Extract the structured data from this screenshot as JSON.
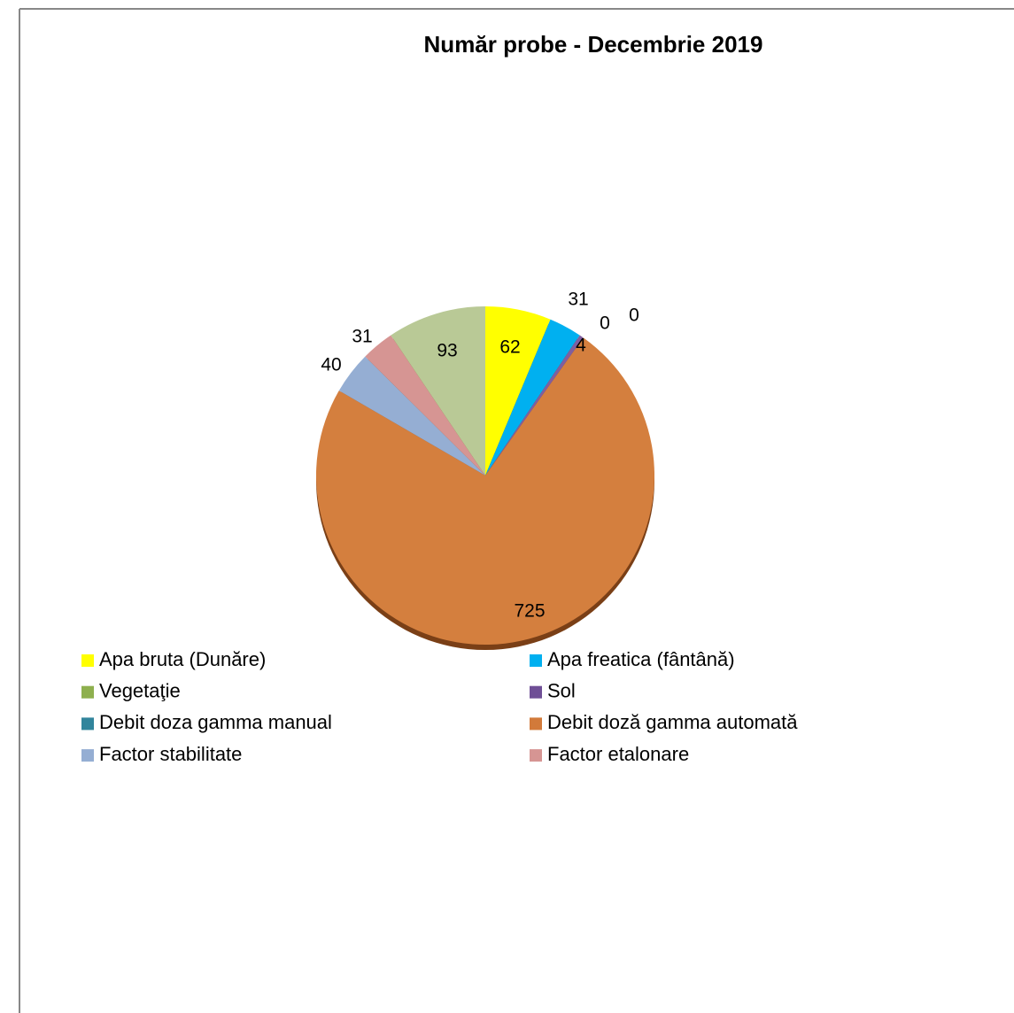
{
  "chart_data": {
    "type": "pie",
    "title": "Număr probe - Decembrie 2019",
    "categories": [
      "Apa bruta (Dunăre)",
      "Apa freatica (fântână)",
      null,
      "Debit  doza gamma manual",
      "Sol",
      "Debit doză gamma automată",
      "Factor stabilitate",
      "Factor etalonare",
      "Vegetaţie"
    ],
    "values": [
      62,
      31,
      0,
      0,
      4,
      725,
      40,
      31,
      93
    ],
    "colors": [
      "#ffff00",
      "#00b0f0",
      "#31859c",
      "#31859c",
      "#7f5fa0",
      "#d47f3e",
      "#95aed3",
      "#d69593",
      "#b9c996"
    ],
    "legend": [
      {
        "name": "Apa bruta (Dunăre)",
        "color": "#ffff00"
      },
      {
        "name": "Apa freatica (fântână)",
        "color": "#00b0f0"
      },
      {
        "name": "Vegetaţie",
        "color": "#8eb04e"
      },
      {
        "name": "Sol",
        "color": "#6f4f96"
      },
      {
        "name": "Debit  doza gamma manual",
        "color": "#31859c"
      },
      {
        "name": "Debit doză gamma automată",
        "color": "#d27a3a"
      },
      {
        "name": "Factor stabilitate",
        "color": "#95aed3"
      },
      {
        "name": "Factor etalonare",
        "color": "#d69593"
      }
    ]
  }
}
